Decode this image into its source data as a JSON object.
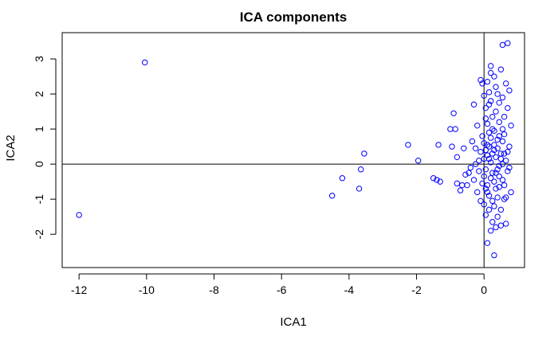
{
  "chart_data": {
    "type": "scatter",
    "title": "ICA components",
    "xlabel": "ICA1",
    "ylabel": "ICA2",
    "xlim": [
      -12.5,
      1.2
    ],
    "ylim": [
      -2.95,
      3.75
    ],
    "x_ticks": [
      -12,
      -10,
      -8,
      -6,
      -4,
      -2,
      0
    ],
    "y_ticks": [
      -2,
      -1,
      0,
      1,
      2,
      3
    ],
    "reference_lines": {
      "h": 0,
      "v": 0
    },
    "grid": false,
    "legend": "none",
    "marker": {
      "shape": "open-circle",
      "color": "#0000ff"
    },
    "series": [
      {
        "points": [
          [
            -12.0,
            -1.45
          ],
          [
            -10.05,
            2.9
          ],
          [
            -4.5,
            -0.9
          ],
          [
            -4.2,
            -0.4
          ],
          [
            -3.7,
            -0.7
          ],
          [
            -3.65,
            -0.15
          ],
          [
            -3.55,
            0.3
          ],
          [
            -2.25,
            0.55
          ],
          [
            -1.95,
            0.1
          ],
          [
            -1.5,
            -0.4
          ],
          [
            -1.4,
            -0.45
          ],
          [
            -1.35,
            0.55
          ],
          [
            -1.3,
            -0.5
          ],
          [
            -1.0,
            1.0
          ],
          [
            -0.95,
            0.5
          ],
          [
            -0.9,
            1.45
          ],
          [
            -0.85,
            1.0
          ],
          [
            -0.8,
            -0.55
          ],
          [
            -0.8,
            0.2
          ],
          [
            -0.7,
            -0.75
          ],
          [
            -0.65,
            -0.6
          ],
          [
            -0.6,
            0.45
          ],
          [
            -0.55,
            -0.3
          ],
          [
            -0.5,
            -0.6
          ],
          [
            -0.45,
            -0.25
          ],
          [
            -0.4,
            -0.1
          ],
          [
            -0.35,
            0.65
          ],
          [
            -0.3,
            1.7
          ],
          [
            -0.3,
            -0.45
          ],
          [
            -0.25,
            0.0
          ],
          [
            -0.2,
            -0.8
          ],
          [
            -0.2,
            1.1
          ],
          [
            -0.15,
            -0.2
          ],
          [
            -0.1,
            0.35
          ],
          [
            -0.1,
            -1.05
          ],
          [
            -0.05,
            0.8
          ],
          [
            -0.05,
            2.3
          ],
          [
            -0.1,
            2.4
          ],
          [
            0.0,
            1.95
          ],
          [
            0.0,
            -0.35
          ],
          [
            0.05,
            1.3
          ],
          [
            0.05,
            -1.45
          ],
          [
            0.1,
            0.55
          ],
          [
            0.1,
            -0.6
          ],
          [
            0.1,
            2.35
          ],
          [
            0.15,
            1.7
          ],
          [
            0.15,
            -0.9
          ],
          [
            0.15,
            0.15
          ],
          [
            0.2,
            2.6
          ],
          [
            0.2,
            2.8
          ],
          [
            0.2,
            -1.9
          ],
          [
            0.25,
            1.0
          ],
          [
            0.25,
            -0.25
          ],
          [
            0.3,
            0.4
          ],
          [
            0.3,
            -1.2
          ],
          [
            0.3,
            2.5
          ],
          [
            0.35,
            1.5
          ],
          [
            0.35,
            -0.7
          ],
          [
            0.4,
            0.7
          ],
          [
            0.4,
            2.0
          ],
          [
            0.4,
            -1.5
          ],
          [
            0.45,
            -0.05
          ],
          [
            0.45,
            1.2
          ],
          [
            0.5,
            2.7
          ],
          [
            0.5,
            -1.75
          ],
          [
            0.5,
            0.3
          ],
          [
            0.55,
            3.4
          ],
          [
            0.55,
            -0.45
          ],
          [
            0.55,
            1.9
          ],
          [
            0.6,
            0.85
          ],
          [
            0.6,
            -1.0
          ],
          [
            0.65,
            2.3
          ],
          [
            0.65,
            0.1
          ],
          [
            0.7,
            3.45
          ],
          [
            0.7,
            -0.2
          ],
          [
            0.7,
            1.6
          ],
          [
            0.75,
            2.1
          ],
          [
            0.75,
            0.5
          ],
          [
            0.8,
            -0.8
          ],
          [
            0.8,
            1.1
          ],
          [
            0.3,
            -2.6
          ],
          [
            0.1,
            -2.25
          ],
          [
            0.25,
            -1.65
          ],
          [
            0.15,
            0.9
          ],
          [
            0.05,
            -0.15
          ],
          [
            0.35,
            0.2
          ],
          [
            0.45,
            -0.35
          ],
          [
            0.2,
            0.05
          ],
          [
            0.1,
            0.25
          ],
          [
            0.3,
            -0.5
          ],
          [
            0.4,
            0.45
          ],
          [
            0.0,
            0.6
          ],
          [
            -0.15,
            0.1
          ],
          [
            0.55,
            0.65
          ],
          [
            0.6,
            -0.6
          ],
          [
            0.25,
            1.35
          ],
          [
            0.05,
            1.6
          ],
          [
            0.35,
            2.2
          ],
          [
            0.45,
            1.75
          ],
          [
            0.15,
            -1.3
          ],
          [
            0.5,
            -1.3
          ],
          [
            0.65,
            -1.7
          ],
          [
            0.2,
            0.75
          ],
          [
            0.3,
            0.95
          ],
          [
            0.4,
            -0.15
          ],
          [
            0.1,
            -0.8
          ],
          [
            0.55,
            0.0
          ],
          [
            0.7,
            0.35
          ],
          [
            0.0,
            0.15
          ],
          [
            -0.25,
            0.45
          ],
          [
            0.25,
            -1.05
          ],
          [
            0.6,
            1.35
          ],
          [
            0.35,
            -1.8
          ],
          [
            0.45,
            0.8
          ],
          [
            0.15,
            2.05
          ],
          [
            0.05,
            0.4
          ],
          [
            0.2,
            -0.4
          ],
          [
            0.5,
            0.15
          ],
          [
            0.65,
            -0.95
          ],
          [
            0.1,
            1.15
          ],
          [
            0.3,
            0.55
          ],
          [
            -0.05,
            -0.55
          ],
          [
            0.4,
            -0.95
          ],
          [
            0.75,
            -0.1
          ],
          [
            0.2,
            1.8
          ],
          [
            0.55,
            1.0
          ],
          [
            0.0,
            -1.15
          ],
          [
            0.35,
            -0.25
          ],
          [
            0.15,
            0.5
          ],
          [
            0.45,
            -0.65
          ],
          [
            0.6,
            0.3
          ],
          [
            0.25,
            0.3
          ],
          [
            0.05,
            -0.7
          ]
        ]
      }
    ]
  }
}
